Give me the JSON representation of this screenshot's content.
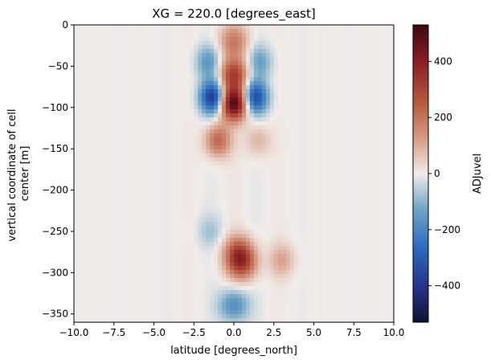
{
  "chart_data": {
    "type": "heatmap",
    "title": "XG = 220.0 [degrees_east]",
    "xlabel": "latitude [degrees_north]",
    "ylabel_lines": [
      "vertical coordinate of cell",
      "center [m]"
    ],
    "colorbar_label": "ADJuvel",
    "xlim": [
      -10.0,
      10.0
    ],
    "ylim": [
      -360,
      0
    ],
    "clim": [
      -530,
      530
    ],
    "xticks": [
      -10.0,
      -7.5,
      -5.0,
      -2.5,
      0.0,
      2.5,
      5.0,
      7.5,
      10.0
    ],
    "xtick_labels": [
      "−10.0",
      "−7.5",
      "−5.0",
      "−2.5",
      "0.0",
      "2.5",
      "5.0",
      "7.5",
      "10.0"
    ],
    "yticks": [
      0,
      -50,
      -100,
      -150,
      -200,
      -250,
      -300,
      -350
    ],
    "ytick_labels": [
      "0",
      "−50",
      "−100",
      "−150",
      "−200",
      "−250",
      "−300",
      "−350"
    ],
    "cticks": [
      400,
      200,
      0,
      -200,
      -400
    ],
    "ctick_labels": [
      "400",
      "200",
      "0",
      "−200",
      "−400"
    ],
    "colormap": "balance",
    "features": [
      {
        "lat": 0.0,
        "depth": -95,
        "value": 520
      },
      {
        "lat": 0.0,
        "depth": -60,
        "value": 300
      },
      {
        "lat": 0.0,
        "depth": -20,
        "value": 180
      },
      {
        "lat": -1.3,
        "depth": -88,
        "value": -420
      },
      {
        "lat": 1.3,
        "depth": -88,
        "value": -380
      },
      {
        "lat": -1.6,
        "depth": -45,
        "value": -160
      },
      {
        "lat": 1.6,
        "depth": -45,
        "value": -140
      },
      {
        "lat": -1.0,
        "depth": -140,
        "value": 230
      },
      {
        "lat": 1.5,
        "depth": -140,
        "value": 90
      },
      {
        "lat": -1.5,
        "depth": -250,
        "value": -70
      },
      {
        "lat": 0.3,
        "depth": -275,
        "value": 230
      },
      {
        "lat": 0.5,
        "depth": -290,
        "value": 250
      },
      {
        "lat": 3.0,
        "depth": -285,
        "value": 110
      },
      {
        "lat": 0.0,
        "depth": -340,
        "value": -190
      }
    ]
  }
}
